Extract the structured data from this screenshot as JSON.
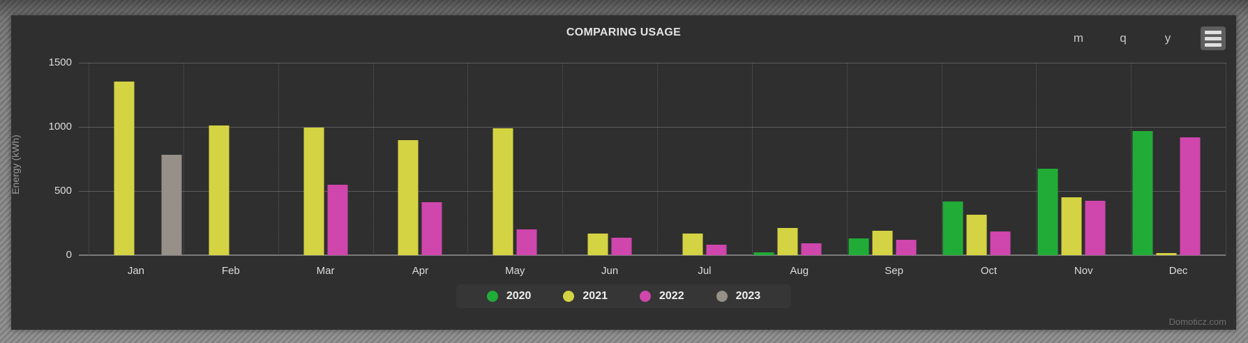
{
  "header": {
    "range_buttons": [
      {
        "id": "month",
        "label": "m"
      },
      {
        "id": "quarter",
        "label": "q"
      },
      {
        "id": "year",
        "label": "y"
      }
    ],
    "menu_icon": "hamburger-icon"
  },
  "watermark": "Domoticz.com",
  "colors": {
    "panel_bg": "#2f2f2f",
    "grid_line": "#5c5c5c",
    "axis_line": "#7a7a7a",
    "tick_label": "#dcdcdc",
    "axis_title": "#9a9a9a",
    "title_text": "#e3e3e3",
    "button_text": "#c8c8c8",
    "legend_text": "#efefef",
    "watermark_text": "#6e6e6e"
  },
  "chart_data": {
    "type": "bar",
    "title": "COMPARING USAGE",
    "ylabel": "Energy (kWh)",
    "ylim": [
      0,
      1500
    ],
    "yticks": [
      0,
      500,
      1000,
      1500
    ],
    "grid": true,
    "legend_position": "bottom-center",
    "categories": [
      "Jan",
      "Feb",
      "Mar",
      "Apr",
      "May",
      "Jun",
      "Jul",
      "Aug",
      "Sep",
      "Oct",
      "Nov",
      "Dec"
    ],
    "series": [
      {
        "name": "2020",
        "color": "#21ac38",
        "values": [
          null,
          null,
          null,
          null,
          null,
          null,
          null,
          20,
          130,
          420,
          675,
          965
        ]
      },
      {
        "name": "2021",
        "color": "#d4d343",
        "values": [
          1355,
          1010,
          995,
          895,
          990,
          170,
          170,
          210,
          190,
          315,
          450,
          15
        ]
      },
      {
        "name": "2022",
        "color": "#cf46ad",
        "values": [
          null,
          null,
          550,
          415,
          200,
          135,
          80,
          90,
          120,
          185,
          425,
          920
        ]
      },
      {
        "name": "2023",
        "color": "#969089",
        "values": [
          785,
          null,
          null,
          null,
          null,
          null,
          null,
          null,
          null,
          null,
          null,
          null
        ]
      }
    ]
  }
}
